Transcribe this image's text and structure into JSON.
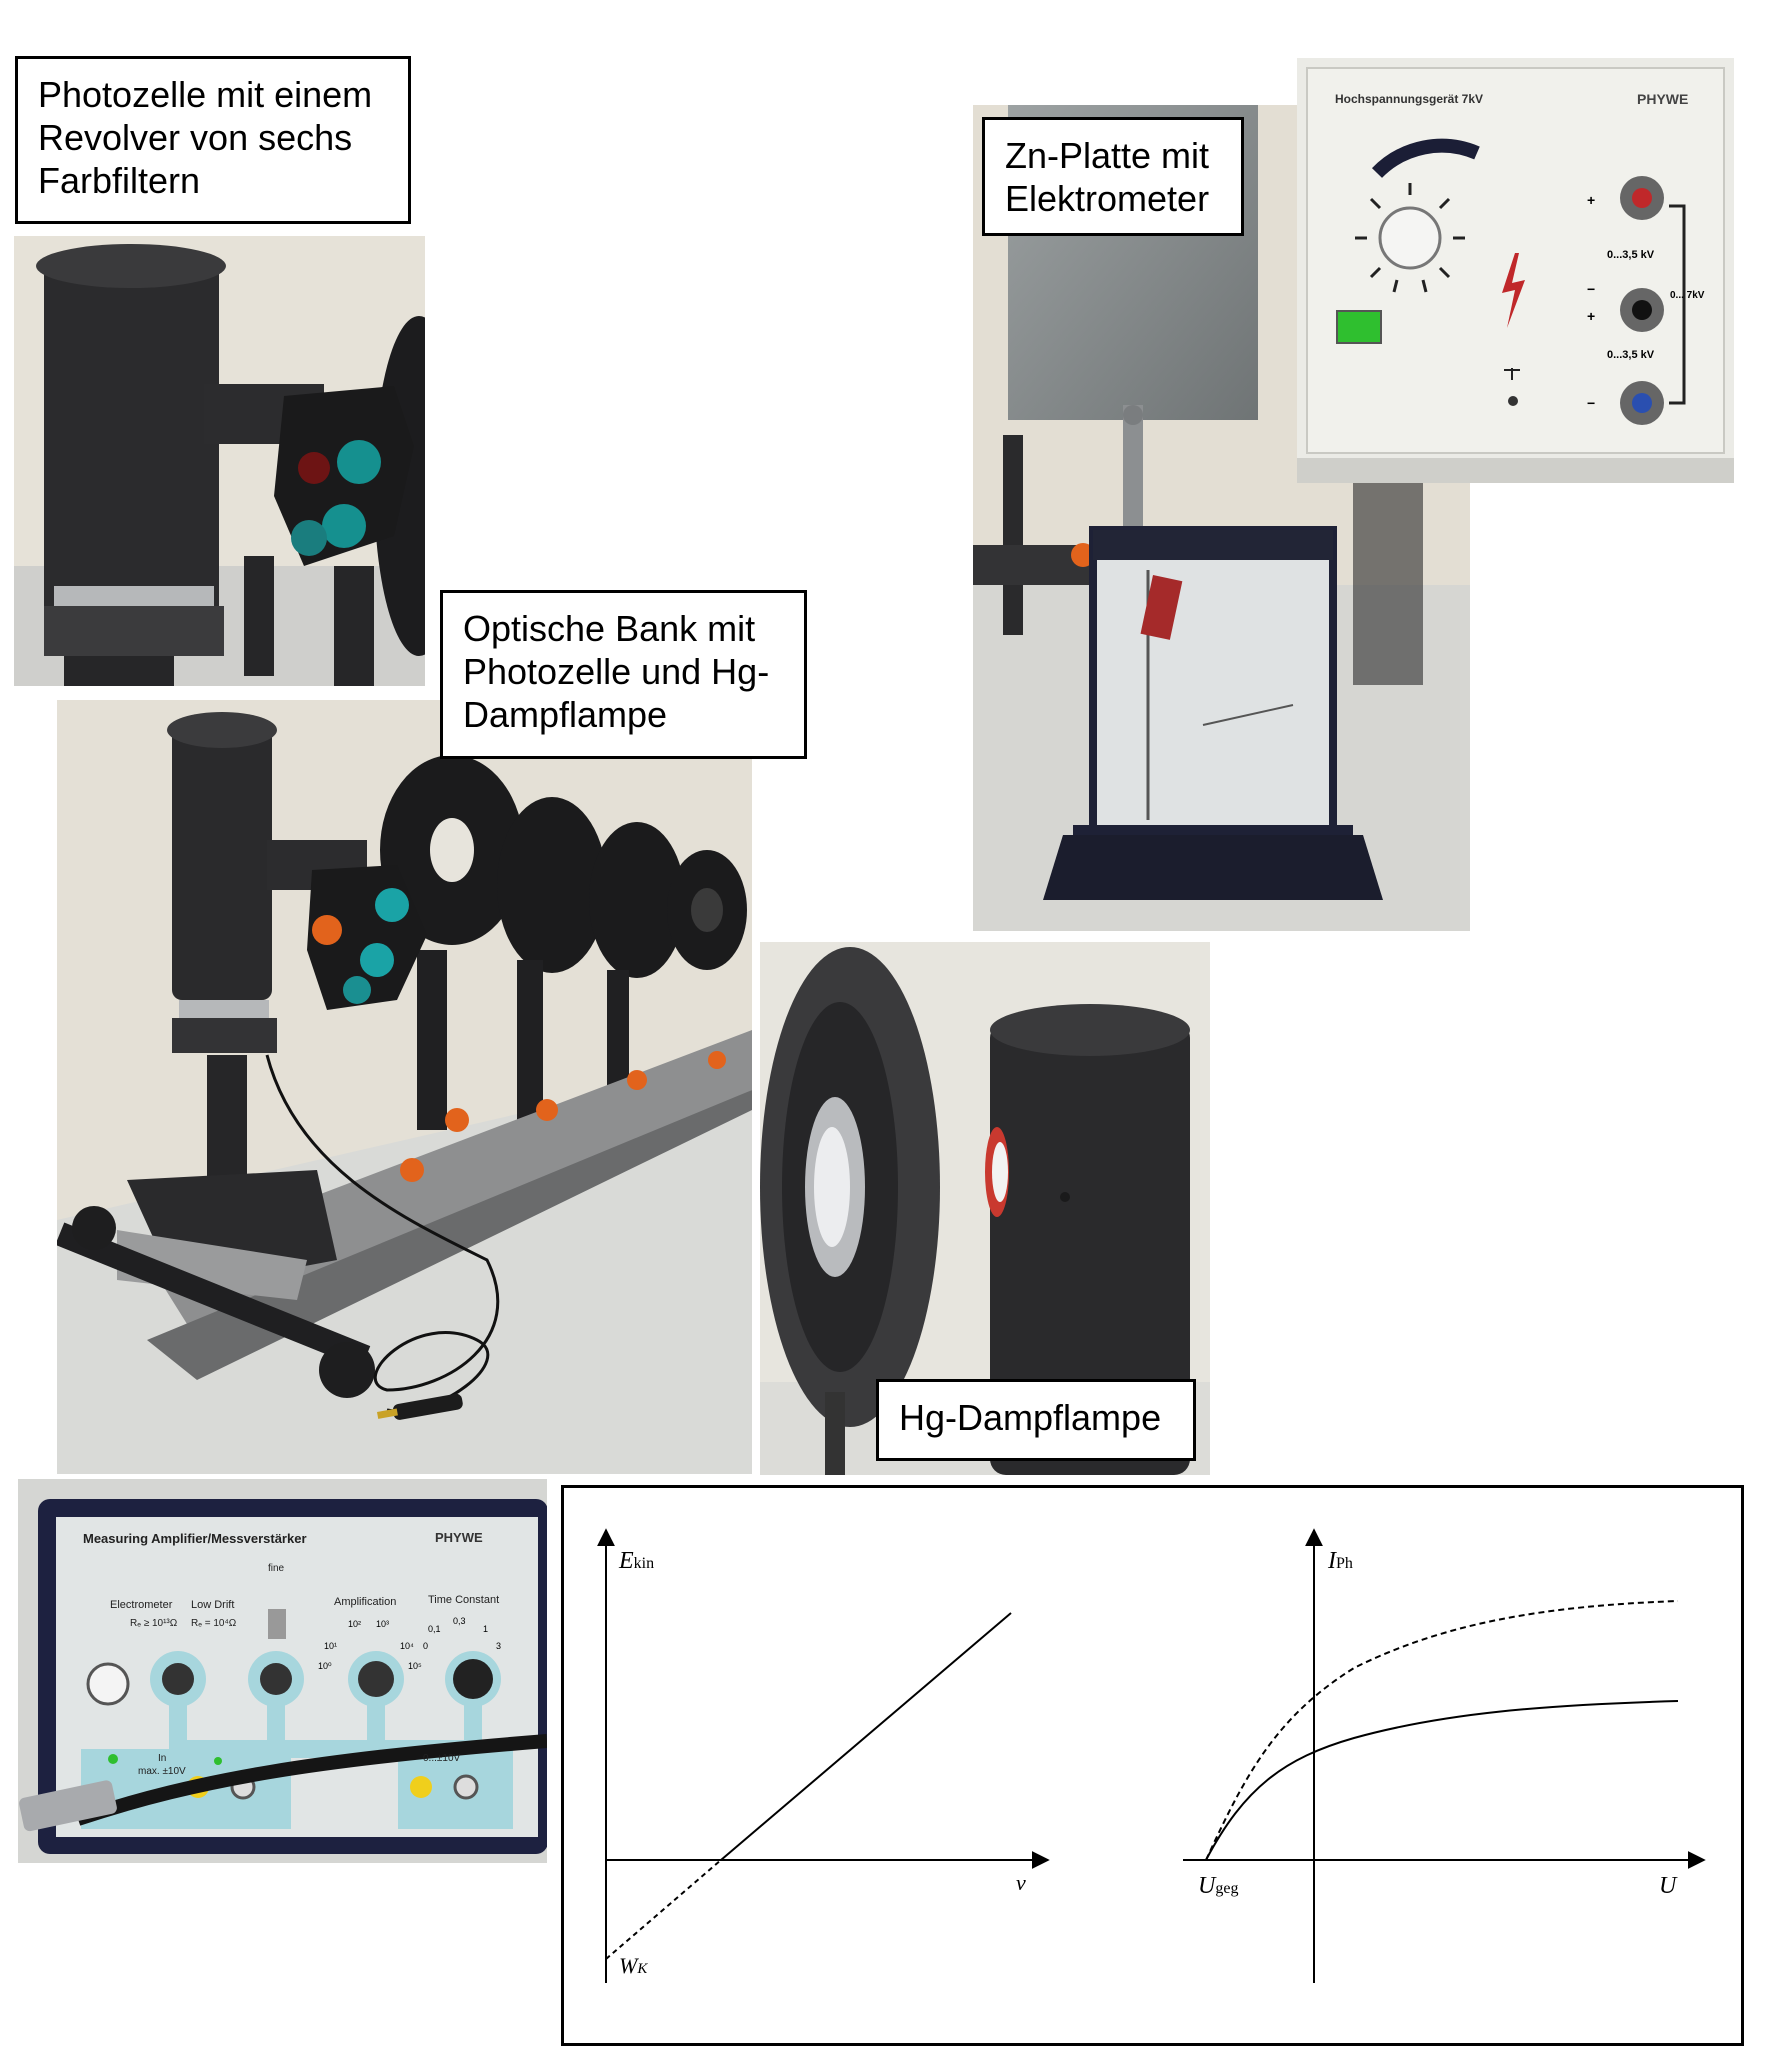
{
  "labels": {
    "photocell": [
      "Photozelle mit einem",
      "Revolver von sechs",
      "Farbfiltern"
    ],
    "optical_bench": [
      "Optische Bank mit",
      "Photozelle und Hg-",
      "Dampflampe"
    ],
    "zn_plate": [
      "Zn-Platte mit",
      "Elektrometer"
    ],
    "hg_lamp": [
      "Hg-Dampflampe"
    ]
  },
  "hv_supply": {
    "title": "Hochspannungsgerät  7kV",
    "brand": "PHYWE",
    "plus1": "+",
    "range1": "0...3,5 kV",
    "minus1": "−",
    "plus2": "+",
    "range_mid": "0... 7kV",
    "range2": "0...3,5 kV",
    "minus2": "−"
  },
  "amplifier": {
    "title": "Measuring Amplifier/Messverstärker",
    "brand": "PHYWE",
    "fine": "fine",
    "electrometer": "Electrometer",
    "electrometer_r": "Rₑ ≥ 10¹³Ω",
    "low_drift": "Low Drift",
    "low_drift_r": "Rₑ = 10⁴Ω",
    "amplification": "Amplification",
    "time_constant": "Time Constant",
    "amp_ticks": [
      "10¹",
      "10²",
      "10³",
      "10⁴",
      "10⁵",
      "10⁰"
    ],
    "tc_ticks": [
      "0",
      "0,1",
      "0,3",
      "1",
      "3"
    ],
    "input": "In",
    "input_max": "max. ±10V",
    "output": "0...±10V"
  },
  "diagram": {
    "left": {
      "ylabel": "E",
      "ylabel_sub": "kin",
      "xlabel": "ν",
      "intercept": "W",
      "intercept_sub": "K"
    },
    "right": {
      "ylabel": "I",
      "ylabel_sub": "Ph",
      "xlabel": "U",
      "stop_voltage": "U",
      "stop_voltage_sub": "geg"
    }
  },
  "colors": {
    "label_border": "#000000",
    "amp_panel": "#dfe4e4",
    "amp_accent": "#a7d6dd",
    "filter_teal": "#1aa3a6",
    "filter_orange": "#e2631c",
    "lamp_black": "#2a2a2c"
  }
}
